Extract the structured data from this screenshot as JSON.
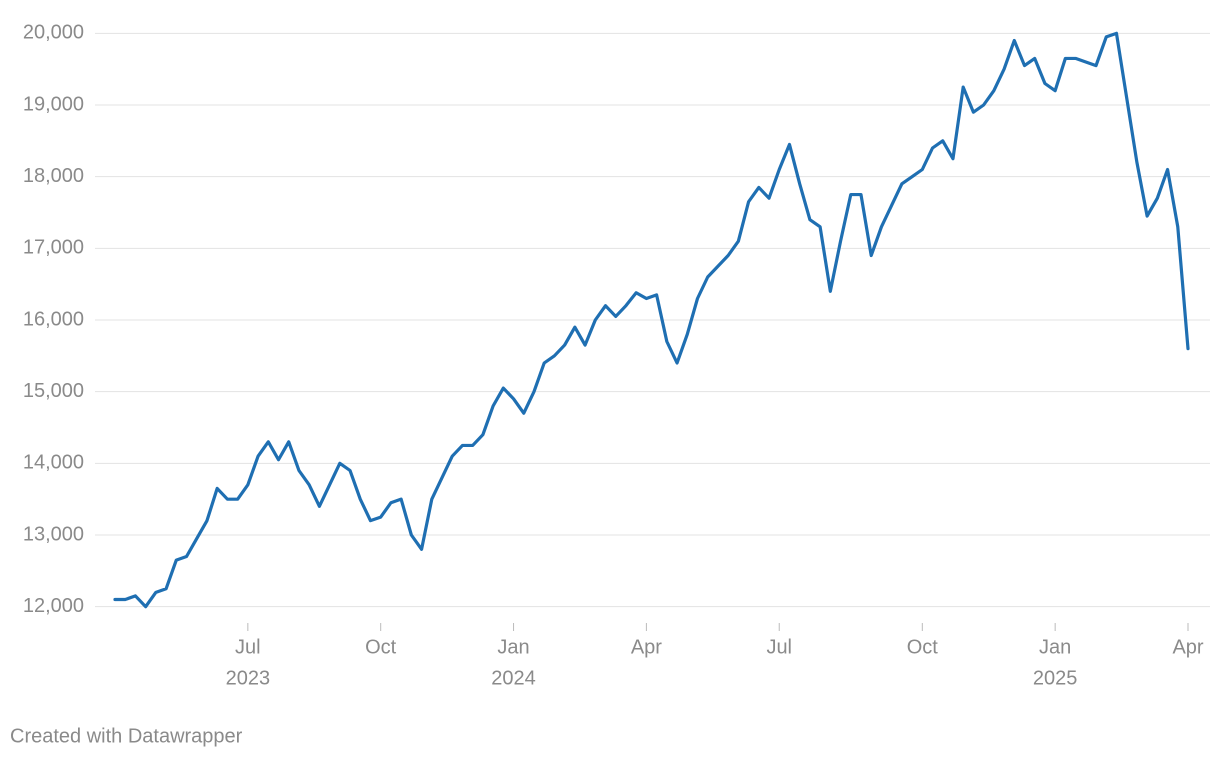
{
  "chart_data": {
    "type": "line",
    "x": [
      "2023-04",
      "2023-04",
      "2023-04",
      "2023-04",
      "2023-05",
      "2023-05",
      "2023-05",
      "2023-05",
      "2023-05",
      "2023-06",
      "2023-06",
      "2023-06",
      "2023-06",
      "2023-07",
      "2023-07",
      "2023-07",
      "2023-07",
      "2023-07",
      "2023-08",
      "2023-08",
      "2023-08",
      "2023-08",
      "2023-09",
      "2023-09",
      "2023-09",
      "2023-09",
      "2023-10",
      "2023-10",
      "2023-10",
      "2023-10",
      "2023-10",
      "2023-11",
      "2023-11",
      "2023-11",
      "2023-11",
      "2023-12",
      "2023-12",
      "2023-12",
      "2023-12",
      "2024-01",
      "2024-01",
      "2024-01",
      "2024-01",
      "2024-01",
      "2024-02",
      "2024-02",
      "2024-02",
      "2024-02",
      "2024-03",
      "2024-03",
      "2024-03",
      "2024-03",
      "2024-04",
      "2024-04",
      "2024-04",
      "2024-04",
      "2024-04",
      "2024-05",
      "2024-05",
      "2024-05",
      "2024-05",
      "2024-06",
      "2024-06",
      "2024-06",
      "2024-06",
      "2024-07",
      "2024-07",
      "2024-07",
      "2024-07",
      "2024-07",
      "2024-08",
      "2024-08",
      "2024-08",
      "2024-08",
      "2024-09",
      "2024-09",
      "2024-09",
      "2024-09",
      "2024-09",
      "2024-10",
      "2024-10",
      "2024-10",
      "2024-10",
      "2024-11",
      "2024-11",
      "2024-11",
      "2024-11",
      "2024-12",
      "2024-12",
      "2024-12",
      "2024-12",
      "2024-12",
      "2025-01",
      "2025-01",
      "2025-01",
      "2025-01",
      "2025-02",
      "2025-02",
      "2025-02",
      "2025-02",
      "2025-03",
      "2025-03",
      "2025-03",
      "2025-03",
      "2025-03",
      "2025-04"
    ],
    "series": [
      {
        "color": "#1f6fb2",
        "values": [
          12100,
          12100,
          12150,
          12000,
          12200,
          12250,
          12650,
          12700,
          12950,
          13200,
          13650,
          13500,
          13500,
          13700,
          14100,
          14300,
          14050,
          14300,
          13900,
          13700,
          13400,
          13700,
          14000,
          13900,
          13500,
          13200,
          13250,
          13450,
          13500,
          13000,
          12800,
          13500,
          13800,
          14100,
          14250,
          14250,
          14400,
          14800,
          15050,
          14900,
          14700,
          15000,
          15400,
          15500,
          15650,
          15900,
          15650,
          16000,
          16200,
          16050,
          16200,
          16380,
          16300,
          16350,
          15700,
          15400,
          15800,
          16300,
          16600,
          16750,
          16900,
          17100,
          17650,
          17850,
          17700,
          18100,
          18450,
          17900,
          17400,
          17300,
          16400,
          17100,
          17750,
          17750,
          16900,
          17300,
          17600,
          17900,
          18000,
          18100,
          18400,
          18500,
          18250,
          19250,
          18900,
          19000,
          19200,
          19500,
          19900,
          19550,
          19650,
          19300,
          19200,
          19650,
          19650,
          19600,
          19550,
          19950,
          20000,
          19100,
          18200,
          17450,
          17700,
          18100,
          17300,
          15600
        ]
      }
    ],
    "ylim": [
      11800,
      20200
    ],
    "yticks": [
      {
        "value": 12000,
        "label": "12,000"
      },
      {
        "value": 13000,
        "label": "13,000"
      },
      {
        "value": 14000,
        "label": "14,000"
      },
      {
        "value": 15000,
        "label": "15,000"
      },
      {
        "value": 16000,
        "label": "16,000"
      },
      {
        "value": 17000,
        "label": "17,000"
      },
      {
        "value": 18000,
        "label": "18,000"
      },
      {
        "value": 19000,
        "label": "19,000"
      },
      {
        "value": 20000,
        "label": "20,000"
      }
    ],
    "xticks": [
      {
        "value": "2023-07",
        "label": "Jul"
      },
      {
        "value": "2023-10",
        "label": "Oct"
      },
      {
        "value": "2024-01",
        "label": "Jan"
      },
      {
        "value": "2024-04",
        "label": "Apr"
      },
      {
        "value": "2024-07",
        "label": "Jul"
      },
      {
        "value": "2024-10",
        "label": "Oct"
      },
      {
        "value": "2025-01",
        "label": "Jan"
      },
      {
        "value": "2025-04",
        "label": "Apr"
      }
    ],
    "xtick_years": [
      {
        "value": "2023-07",
        "label": "2023"
      },
      {
        "value": "2024-01",
        "label": "2024"
      },
      {
        "value": "2025-01",
        "label": "2025"
      }
    ],
    "grid": true,
    "footer": "Created with Datawrapper"
  }
}
